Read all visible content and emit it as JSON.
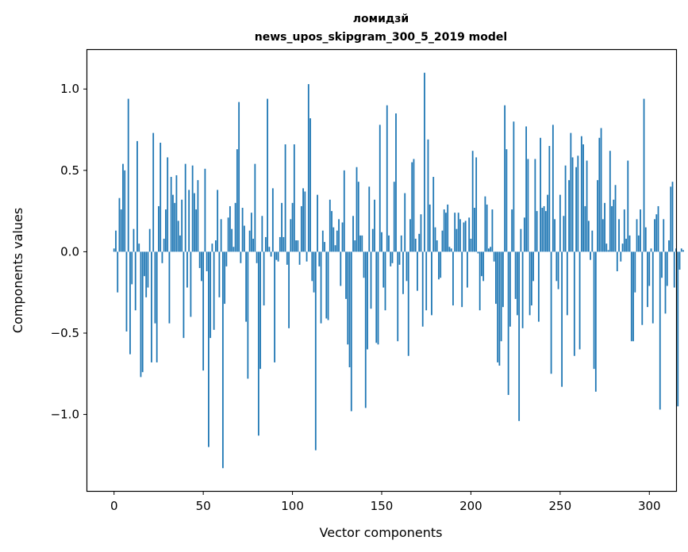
{
  "chart_data": {
    "type": "bar",
    "title": [
      "ломидзй",
      "news_upos_skipgram_300_5_2019 model"
    ],
    "xlabel": "Vector components",
    "ylabel": "Components values",
    "xlim": [
      -15,
      315
    ],
    "ylim": [
      -1.47,
      1.24
    ],
    "xticks": [
      0,
      50,
      100,
      150,
      200,
      250,
      300
    ],
    "yticks": [
      -1.0,
      -0.5,
      0.0,
      0.5,
      1.0
    ],
    "ytick_labels": [
      "−1.0",
      "−0.5",
      "0.0",
      "0.5",
      "1.0"
    ],
    "grid": false,
    "bar_color": "#1f77b4",
    "values": [
      0.02,
      0.13,
      -0.25,
      0.33,
      0.26,
      0.54,
      0.5,
      -0.49,
      0.94,
      -0.63,
      -0.2,
      0.14,
      -0.36,
      0.68,
      0.05,
      -0.77,
      -0.74,
      -0.15,
      -0.28,
      -0.22,
      0.14,
      -0.68,
      0.73,
      -0.44,
      -0.68,
      0.28,
      0.67,
      -0.07,
      0.08,
      0.26,
      0.58,
      -0.44,
      0.46,
      0.35,
      0.3,
      0.47,
      0.19,
      0.1,
      0.32,
      -0.53,
      0.54,
      -0.22,
      0.38,
      -0.4,
      0.53,
      0.36,
      0.26,
      0.44,
      -0.1,
      -0.18,
      -0.73,
      0.51,
      -0.12,
      -1.2,
      -0.53,
      0.05,
      -0.48,
      0.07,
      0.38,
      -0.28,
      0.2,
      -1.33,
      -0.32,
      -0.09,
      0.21,
      0.28,
      0.14,
      0.03,
      0.3,
      0.63,
      0.92,
      -0.07,
      0.27,
      0.16,
      -0.43,
      -0.78,
      0.13,
      0.24,
      0.08,
      0.54,
      -0.07,
      -1.13,
      -0.72,
      0.22,
      -0.33,
      0.09,
      0.94,
      0.03,
      -0.03,
      0.39,
      -0.68,
      -0.05,
      -0.06,
      0.09,
      0.3,
      0.09,
      0.66,
      -0.08,
      -0.47,
      0.2,
      0.3,
      0.66,
      0.07,
      0.07,
      -0.08,
      0.28,
      0.39,
      0.37,
      -0.06,
      1.03,
      0.82,
      -0.18,
      -0.25,
      -1.22,
      0.35,
      -0.09,
      -0.44,
      0.13,
      0.06,
      -0.41,
      -0.42,
      0.32,
      0.25,
      0.15,
      0.04,
      0.13,
      0.2,
      -0.21,
      0.18,
      0.5,
      -0.29,
      -0.57,
      -0.71,
      -0.98,
      0.22,
      0.07,
      0.52,
      0.43,
      0.1,
      0.1,
      -0.16,
      -0.96,
      -0.6,
      0.4,
      -0.35,
      0.14,
      0.32,
      -0.56,
      -0.57,
      0.78,
      0.12,
      -0.22,
      -0.36,
      0.9,
      0.1,
      -0.09,
      -0.07,
      0.43,
      0.85,
      -0.55,
      -0.08,
      0.1,
      -0.26,
      0.36,
      -0.18,
      -0.64,
      0.2,
      0.55,
      0.57,
      0.08,
      -0.24,
      0.11,
      0.23,
      -0.46,
      1.1,
      -0.36,
      0.69,
      0.29,
      -0.39,
      0.46,
      0.15,
      0.07,
      -0.17,
      -0.16,
      0.13,
      0.26,
      0.24,
      0.29,
      0.03,
      0.02,
      -0.33,
      0.24,
      0.14,
      0.24,
      0.2,
      -0.34,
      0.18,
      0.19,
      -0.22,
      0.21,
      0.08,
      0.62,
      0.27,
      0.58,
      -0.01,
      -0.36,
      -0.15,
      -0.18,
      0.34,
      0.29,
      0.02,
      0.03,
      0.26,
      -0.06,
      -0.32,
      -0.68,
      -0.7,
      -0.55,
      -0.34,
      0.9,
      0.63,
      -0.88,
      -0.46,
      0.26,
      0.8,
      -0.29,
      -0.39,
      -1.04,
      0.14,
      -0.47,
      0.21,
      0.77,
      0.57,
      -0.39,
      -0.33,
      -0.18,
      0.57,
      0.25,
      -0.43,
      0.7,
      0.27,
      0.28,
      0.25,
      0.35,
      0.65,
      -0.75,
      0.78,
      0.2,
      -0.18,
      -0.23,
      0.35,
      -0.83,
      0.22,
      0.53,
      -0.39,
      0.44,
      0.73,
      0.58,
      -0.64,
      0.52,
      0.59,
      -0.6,
      0.71,
      0.66,
      0.28,
      0.56,
      0.19,
      -0.05,
      0.13,
      -0.72,
      -0.86,
      0.44,
      0.7,
      0.76,
      0.2,
      0.3,
      0.05,
      0.01,
      0.62,
      0.28,
      0.32,
      0.41,
      -0.12,
      0.2,
      -0.06,
      0.05,
      0.26,
      0.08,
      0.56,
      0.1,
      -0.55,
      -0.55,
      -0.25,
      0.2,
      0.1,
      0.26,
      -0.45,
      0.94,
      0.15,
      -0.34,
      -0.21,
      0.02,
      -0.44,
      0.2,
      0.23,
      0.28,
      -0.97,
      -0.16,
      0.2,
      -0.38,
      -0.21,
      0.07,
      0.4,
      0.43,
      -0.22,
      0.02,
      -0.95,
      -0.11,
      0.02,
      0.01
    ]
  }
}
